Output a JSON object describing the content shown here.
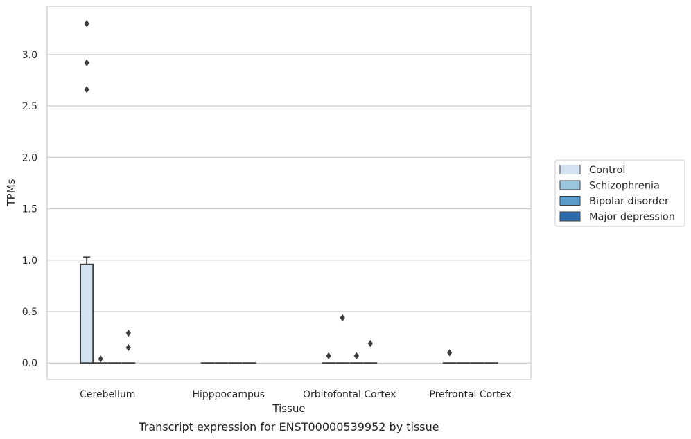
{
  "chart_data": {
    "type": "box",
    "title": "",
    "caption": "Transcript expression for ENST00000539952 by tissue",
    "xlabel": "Tissue",
    "ylabel": "TPMs",
    "ylim": [
      -0.16,
      3.47
    ],
    "yticks": [
      0.0,
      0.5,
      1.0,
      1.5,
      2.0,
      2.5,
      3.0
    ],
    "ytick_labels": [
      "0.0",
      "0.5",
      "1.0",
      "1.5",
      "2.0",
      "2.5",
      "3.0"
    ],
    "grid": true,
    "legend_position": "right",
    "categories": [
      "Cerebellum",
      "Hipppocampus",
      "Orbitofontal Cortex",
      "Prefrontal Cortex"
    ],
    "series": [
      {
        "name": "Control",
        "color": "#d3e3f2",
        "boxes": [
          {
            "q1": 0.0,
            "median": 0.0,
            "q3": 0.96,
            "whisker_low": 0.0,
            "whisker_high": 1.03,
            "outliers": [
              2.66,
              2.92,
              3.3
            ]
          },
          {
            "q1": 0.0,
            "median": 0.0,
            "q3": 0.0,
            "whisker_low": 0.0,
            "whisker_high": 0.0,
            "outliers": []
          },
          {
            "q1": 0.0,
            "median": 0.0,
            "q3": 0.0,
            "whisker_low": 0.0,
            "whisker_high": 0.0,
            "outliers": [
              0.07
            ]
          },
          {
            "q1": 0.0,
            "median": 0.0,
            "q3": 0.0,
            "whisker_low": 0.0,
            "whisker_high": 0.0,
            "outliers": [
              0.1
            ]
          }
        ]
      },
      {
        "name": "Schizophrenia",
        "color": "#9ac5df",
        "boxes": [
          {
            "q1": 0.0,
            "median": 0.0,
            "q3": 0.0,
            "whisker_low": 0.0,
            "whisker_high": 0.0,
            "outliers": [
              0.04
            ]
          },
          {
            "q1": 0.0,
            "median": 0.0,
            "q3": 0.0,
            "whisker_low": 0.0,
            "whisker_high": 0.0,
            "outliers": []
          },
          {
            "q1": 0.0,
            "median": 0.0,
            "q3": 0.0,
            "whisker_low": 0.0,
            "whisker_high": 0.0,
            "outliers": [
              0.44
            ]
          },
          {
            "q1": 0.0,
            "median": 0.0,
            "q3": 0.0,
            "whisker_low": 0.0,
            "whisker_high": 0.0,
            "outliers": []
          }
        ]
      },
      {
        "name": "Bipolar disorder",
        "color": "#5b9bc9",
        "boxes": [
          {
            "q1": 0.0,
            "median": 0.0,
            "q3": 0.0,
            "whisker_low": 0.0,
            "whisker_high": 0.0,
            "outliers": []
          },
          {
            "q1": 0.0,
            "median": 0.0,
            "q3": 0.0,
            "whisker_low": 0.0,
            "whisker_high": 0.0,
            "outliers": []
          },
          {
            "q1": 0.0,
            "median": 0.0,
            "q3": 0.0,
            "whisker_low": 0.0,
            "whisker_high": 0.0,
            "outliers": [
              0.07
            ]
          },
          {
            "q1": 0.0,
            "median": 0.0,
            "q3": 0.0,
            "whisker_low": 0.0,
            "whisker_high": 0.0,
            "outliers": []
          }
        ]
      },
      {
        "name": "Major depression",
        "color": "#2a6aaa",
        "boxes": [
          {
            "q1": 0.0,
            "median": 0.0,
            "q3": 0.0,
            "whisker_low": 0.0,
            "whisker_high": 0.0,
            "outliers": [
              0.15,
              0.29
            ]
          },
          {
            "q1": 0.0,
            "median": 0.0,
            "q3": 0.0,
            "whisker_low": 0.0,
            "whisker_high": 0.0,
            "outliers": []
          },
          {
            "q1": 0.0,
            "median": 0.0,
            "q3": 0.0,
            "whisker_low": 0.0,
            "whisker_high": 0.0,
            "outliers": [
              0.19
            ]
          },
          {
            "q1": 0.0,
            "median": 0.0,
            "q3": 0.0,
            "whisker_low": 0.0,
            "whisker_high": 0.0,
            "outliers": []
          }
        ]
      }
    ]
  }
}
